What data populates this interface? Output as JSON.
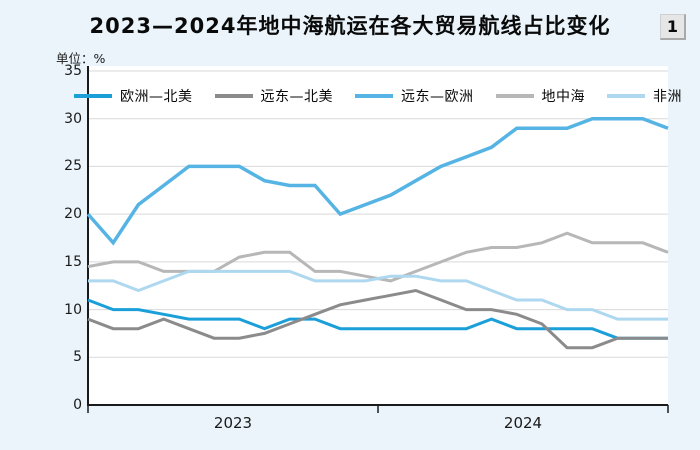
{
  "page": {
    "title": "2023—2024年地中海航运在各大贸易航线占比变化",
    "badge": "1",
    "unit_label": "单位：%"
  },
  "chart_data": {
    "type": "line",
    "title": "2023—2024年地中海航运在各大贸易航线占比变化",
    "unit": "%",
    "x_groups": [
      "2023",
      "2024"
    ],
    "points_per_group": 12,
    "ylim": [
      0,
      35
    ],
    "yticks": [
      0,
      5,
      10,
      15,
      20,
      25,
      30,
      35
    ],
    "grid": true,
    "legend_position": "top",
    "series": [
      {
        "key": "europe-north-america",
        "name": "欧洲—北美",
        "color": "#1b9fd9",
        "values": [
          11,
          10,
          10,
          9.5,
          9,
          9,
          9,
          8,
          9,
          9,
          8,
          8,
          8,
          8,
          8,
          8,
          9,
          8,
          8,
          8,
          8,
          7,
          7,
          7
        ]
      },
      {
        "key": "fareast-north-america",
        "name": "远东—北美",
        "color": "#8b8b8b",
        "values": [
          9,
          8,
          8,
          9,
          8,
          7,
          7,
          7.5,
          8.5,
          9.5,
          10.5,
          11,
          11.5,
          12,
          11,
          10,
          10,
          9.5,
          8.5,
          6,
          6,
          7,
          7,
          7
        ]
      },
      {
        "key": "fareast-europe",
        "name": "远东—欧洲",
        "color": "#55b4e4",
        "values": [
          20,
          17,
          21,
          23,
          25,
          25,
          25,
          23.5,
          23,
          23,
          20,
          21,
          22,
          23.5,
          25,
          26,
          27,
          29,
          29,
          29,
          30,
          30,
          30,
          29
        ]
      },
      {
        "key": "mediterranean",
        "name": "地中海",
        "color": "#b7b7b7",
        "values": [
          14.5,
          15,
          15,
          14,
          14,
          14,
          15.5,
          16,
          16,
          14,
          14,
          13.5,
          13,
          14,
          15,
          16,
          16.5,
          16.5,
          17,
          18,
          17,
          17,
          17,
          16
        ]
      },
      {
        "key": "africa",
        "name": "非洲",
        "color": "#aed8f0",
        "values": [
          13,
          13,
          12,
          13,
          14,
          14,
          14,
          14,
          14,
          13,
          13,
          13,
          13.5,
          13.5,
          13,
          13,
          12,
          11,
          11,
          10,
          10,
          9,
          9,
          9
        ]
      }
    ]
  }
}
